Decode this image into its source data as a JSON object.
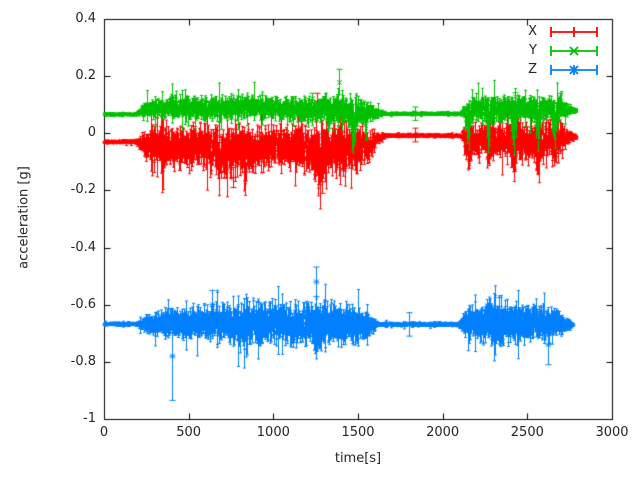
{
  "figure": {
    "background": "#ffffff",
    "border_color": "#000000",
    "text_color": "#262626"
  },
  "chart_data": {
    "type": "scatter",
    "style": "errorbars",
    "title": "",
    "xlabel": "time[s]",
    "ylabel": "acceleration [g]",
    "xlim": [
      0,
      3000
    ],
    "ylim": [
      -1,
      0.4
    ],
    "xticks": [
      "0",
      "500",
      "1000",
      "1500",
      "2000",
      "2500",
      "3000"
    ],
    "yticks": [
      "0.4",
      "0.2",
      "0",
      "-0.2",
      "-0.4",
      "-0.6",
      "-0.8",
      "-1"
    ],
    "grid": false,
    "legend_position": "top-right",
    "dt": 2,
    "seed": 1337,
    "series": [
      {
        "name": "X",
        "color": "#ff0000",
        "marker": "plus",
        "t_end": 2790,
        "envelope": [
          [
            0,
            -0.03,
            0.004
          ],
          [
            185,
            -0.03,
            0.005
          ],
          [
            210,
            -0.035,
            0.015
          ],
          [
            255,
            -0.045,
            0.04
          ],
          [
            400,
            -0.05,
            0.05
          ],
          [
            550,
            -0.048,
            0.055
          ],
          [
            700,
            -0.055,
            0.06
          ],
          [
            850,
            -0.052,
            0.058
          ],
          [
            1000,
            -0.042,
            0.048
          ],
          [
            1150,
            -0.048,
            0.052
          ],
          [
            1250,
            -0.058,
            0.065
          ],
          [
            1400,
            -0.052,
            0.06
          ],
          [
            1500,
            -0.048,
            0.055
          ],
          [
            1570,
            -0.04,
            0.035
          ],
          [
            1615,
            -0.018,
            0.014
          ],
          [
            1665,
            -0.008,
            0.004
          ],
          [
            2105,
            -0.008,
            0.004
          ],
          [
            2135,
            -0.02,
            0.03
          ],
          [
            2200,
            -0.028,
            0.045
          ],
          [
            2320,
            -0.022,
            0.042
          ],
          [
            2450,
            -0.028,
            0.048
          ],
          [
            2580,
            -0.022,
            0.045
          ],
          [
            2680,
            -0.02,
            0.04
          ],
          [
            2745,
            -0.015,
            0.015
          ],
          [
            2790,
            -0.012,
            0.005
          ]
        ],
        "dips": [
          [
            350,
            15,
            0.035
          ],
          [
            700,
            20,
            0.045
          ],
          [
            830,
            15,
            0.045
          ],
          [
            1270,
            22,
            0.07
          ],
          [
            1420,
            15,
            0.05
          ],
          [
            2150,
            15,
            0.05
          ],
          [
            2270,
            12,
            0.045
          ],
          [
            2420,
            15,
            0.05
          ],
          [
            2560,
            12,
            0.045
          ],
          [
            2660,
            14,
            0.045
          ]
        ],
        "spikes": [
          [
            1255,
            0.112,
            0.088,
            0.14
          ],
          [
            1290,
            -0.17,
            -0.21,
            -0.13
          ],
          [
            760,
            -0.155,
            -0.19,
            -0.12
          ],
          [
            1835,
            -0.005,
            -0.03,
            0.018
          ]
        ]
      },
      {
        "name": "Y",
        "color": "#00c000",
        "marker": "cross",
        "t_end": 2790,
        "envelope": [
          [
            0,
            0.066,
            0.004
          ],
          [
            185,
            0.066,
            0.004
          ],
          [
            215,
            0.075,
            0.012
          ],
          [
            260,
            0.085,
            0.022
          ],
          [
            400,
            0.09,
            0.027
          ],
          [
            550,
            0.088,
            0.028
          ],
          [
            700,
            0.086,
            0.028
          ],
          [
            850,
            0.09,
            0.026
          ],
          [
            1000,
            0.088,
            0.027
          ],
          [
            1150,
            0.085,
            0.028
          ],
          [
            1300,
            0.08,
            0.032
          ],
          [
            1450,
            0.078,
            0.035
          ],
          [
            1550,
            0.075,
            0.028
          ],
          [
            1615,
            0.071,
            0.012
          ],
          [
            1665,
            0.068,
            0.004
          ],
          [
            2105,
            0.068,
            0.004
          ],
          [
            2135,
            0.08,
            0.02
          ],
          [
            2220,
            0.088,
            0.028
          ],
          [
            2350,
            0.085,
            0.03
          ],
          [
            2480,
            0.09,
            0.028
          ],
          [
            2600,
            0.086,
            0.028
          ],
          [
            2700,
            0.085,
            0.025
          ],
          [
            2750,
            0.08,
            0.012
          ],
          [
            2790,
            0.08,
            0.005
          ]
        ],
        "dips": [
          [
            1320,
            10,
            0.045
          ],
          [
            1470,
            16,
            0.08
          ],
          [
            1545,
            10,
            0.05
          ],
          [
            2150,
            14,
            0.085
          ],
          [
            2270,
            11,
            0.075
          ],
          [
            2420,
            14,
            0.08
          ],
          [
            2560,
            11,
            0.07
          ],
          [
            2660,
            13,
            0.075
          ]
        ],
        "spikes": [
          [
            1390,
            0.178,
            0.134,
            0.224
          ],
          [
            1230,
            0.122,
            0.105,
            0.14
          ],
          [
            1835,
            0.07,
            0.045,
            0.092
          ],
          [
            2430,
            0.128,
            0.112,
            0.142
          ],
          [
            2690,
            0.126,
            0.11,
            0.14
          ]
        ]
      },
      {
        "name": "Z",
        "color": "#0080ff",
        "marker": "star",
        "t_end": 2768,
        "envelope": [
          [
            0,
            -0.668,
            0.004
          ],
          [
            185,
            -0.668,
            0.004
          ],
          [
            215,
            -0.668,
            0.012
          ],
          [
            260,
            -0.667,
            0.025
          ],
          [
            400,
            -0.665,
            0.035
          ],
          [
            550,
            -0.663,
            0.04
          ],
          [
            700,
            -0.667,
            0.045
          ],
          [
            850,
            -0.66,
            0.052
          ],
          [
            1000,
            -0.665,
            0.05
          ],
          [
            1150,
            -0.667,
            0.05
          ],
          [
            1250,
            -0.66,
            0.055
          ],
          [
            1400,
            -0.666,
            0.052
          ],
          [
            1520,
            -0.667,
            0.042
          ],
          [
            1580,
            -0.669,
            0.022
          ],
          [
            1618,
            -0.669,
            0.005
          ],
          [
            2095,
            -0.669,
            0.005
          ],
          [
            2125,
            -0.665,
            0.03
          ],
          [
            2220,
            -0.659,
            0.048
          ],
          [
            2330,
            -0.663,
            0.052
          ],
          [
            2460,
            -0.667,
            0.046
          ],
          [
            2570,
            -0.661,
            0.046
          ],
          [
            2660,
            -0.664,
            0.038
          ],
          [
            2720,
            -0.667,
            0.022
          ],
          [
            2768,
            -0.669,
            0.006
          ]
        ],
        "dips": [
          [
            820,
            18,
            0.035
          ],
          [
            1250,
            20,
            0.04
          ],
          [
            2330,
            16,
            0.035
          ]
        ],
        "spikes": [
          [
            400,
            -0.78,
            -0.935,
            -0.625
          ],
          [
            640,
            -0.6,
            -0.655,
            -0.55
          ],
          [
            1250,
            -0.52,
            -0.572,
            -0.468
          ],
          [
            1800,
            -0.668,
            -0.71,
            -0.628
          ],
          [
            2330,
            -0.62,
            -0.66,
            -0.575
          ],
          [
            2620,
            -0.74,
            -0.81,
            -0.67
          ]
        ]
      }
    ]
  }
}
